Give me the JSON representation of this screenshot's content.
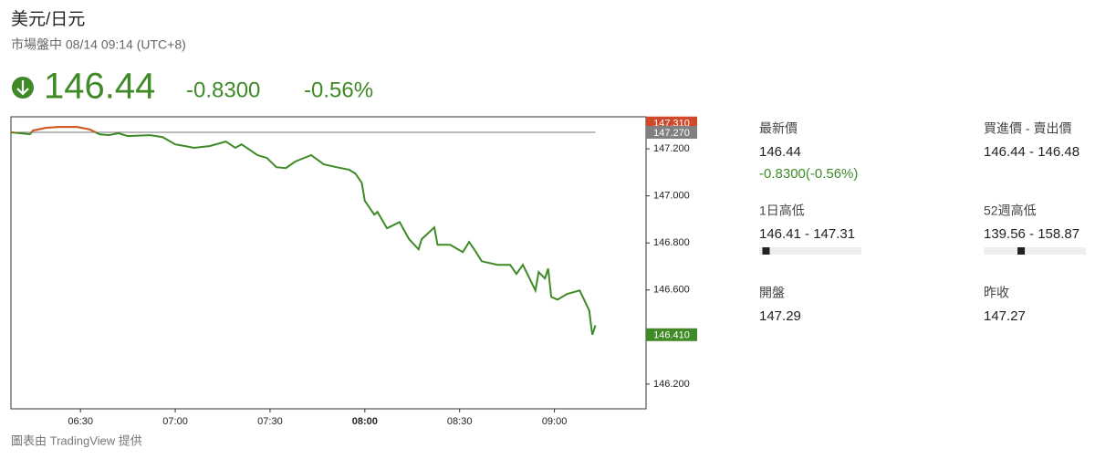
{
  "header": {
    "title": "美元/日元",
    "status": "市場盤中 08/14 09:14 (UTC+8)",
    "price": "146.44",
    "change": "-0.8300",
    "change_percent": "-0.56%",
    "color": "#3f8a26"
  },
  "chart_data": {
    "type": "line",
    "x": [
      "06:08",
      "06:14",
      "06:15",
      "06:19",
      "06:23",
      "06:29",
      "06:33",
      "06:36",
      "06:39",
      "06:42",
      "06:45",
      "06:52",
      "06:56",
      "07:00",
      "07:03",
      "07:06",
      "07:11",
      "07:16",
      "07:19",
      "07:21",
      "07:26",
      "07:29",
      "07:32",
      "07:35",
      "07:38",
      "07:43",
      "07:47",
      "07:51",
      "07:55",
      "07:57",
      "07:59",
      "08:00",
      "08:03",
      "08:04",
      "08:07",
      "08:11",
      "08:14",
      "08:17",
      "08:18",
      "08:22",
      "08:23",
      "08:27",
      "08:31",
      "08:33",
      "08:35",
      "08:37",
      "08:42",
      "08:46",
      "08:48",
      "08:50",
      "08:54",
      "08:55",
      "08:57",
      "08:58",
      "08:59",
      "09:01",
      "09:04",
      "09:08",
      "09:11",
      "09:12",
      "09:13"
    ],
    "values": [
      147.27,
      147.262,
      147.278,
      147.289,
      147.293,
      147.293,
      147.282,
      147.262,
      147.258,
      147.266,
      147.254,
      147.258,
      147.25,
      147.219,
      147.212,
      147.204,
      147.212,
      147.231,
      147.204,
      147.219,
      147.173,
      147.161,
      147.122,
      147.118,
      147.146,
      147.173,
      147.134,
      147.122,
      147.111,
      147.095,
      147.056,
      146.979,
      146.92,
      146.932,
      146.862,
      146.889,
      146.816,
      146.773,
      146.816,
      146.866,
      146.792,
      146.792,
      146.761,
      146.804,
      146.765,
      146.722,
      146.707,
      146.707,
      146.668,
      146.707,
      146.598,
      146.676,
      146.649,
      146.691,
      146.571,
      146.559,
      146.583,
      146.598,
      146.513,
      146.41,
      146.45
    ],
    "color": "#3f8a26",
    "above_color": "#d9541e",
    "reference_line": {
      "value": 147.27,
      "color": "#777777"
    },
    "price_tags": [
      {
        "value": 147.31,
        "label": "147.310",
        "color": "#d0492a"
      },
      {
        "value": 147.27,
        "label": "147.270",
        "color": "#808080"
      },
      {
        "value": 146.41,
        "label": "146.410",
        "color": "#3f8a26"
      }
    ],
    "xlim": [
      "06:08",
      "09:29"
    ],
    "xticks": [
      "06:30",
      "07:00",
      "07:30",
      "08:00",
      "08:30",
      "09:00"
    ],
    "bold_xtick": "08:00",
    "ylim": [
      146.095,
      147.336
    ],
    "yticks": [
      {
        "value": 146.2,
        "label": "146.200"
      },
      {
        "value": 146.6,
        "label": "146.600"
      },
      {
        "value": 146.8,
        "label": "146.800"
      },
      {
        "value": 147.0,
        "label": "147.000"
      },
      {
        "value": 147.2,
        "label": "147.200"
      }
    ]
  },
  "stats": [
    {
      "label": "最新價",
      "value": "146.44",
      "change": "-0.8300(-0.56%)"
    },
    {
      "label": "買進價 - 賣出價",
      "value": "146.44 - 146.48"
    },
    {
      "label": "1日高低",
      "value": "146.41 - 147.31",
      "range": {
        "min": 146.41,
        "max": 147.31,
        "current": 146.44
      }
    },
    {
      "label": "52週高低",
      "value": "139.56 - 158.87",
      "range": {
        "min": 139.56,
        "max": 158.87,
        "current": 146.44
      }
    },
    {
      "label": "開盤",
      "value": "147.29"
    },
    {
      "label": "昨收",
      "value": "147.27"
    }
  ],
  "footer": "圖表由 TradingView 提供"
}
